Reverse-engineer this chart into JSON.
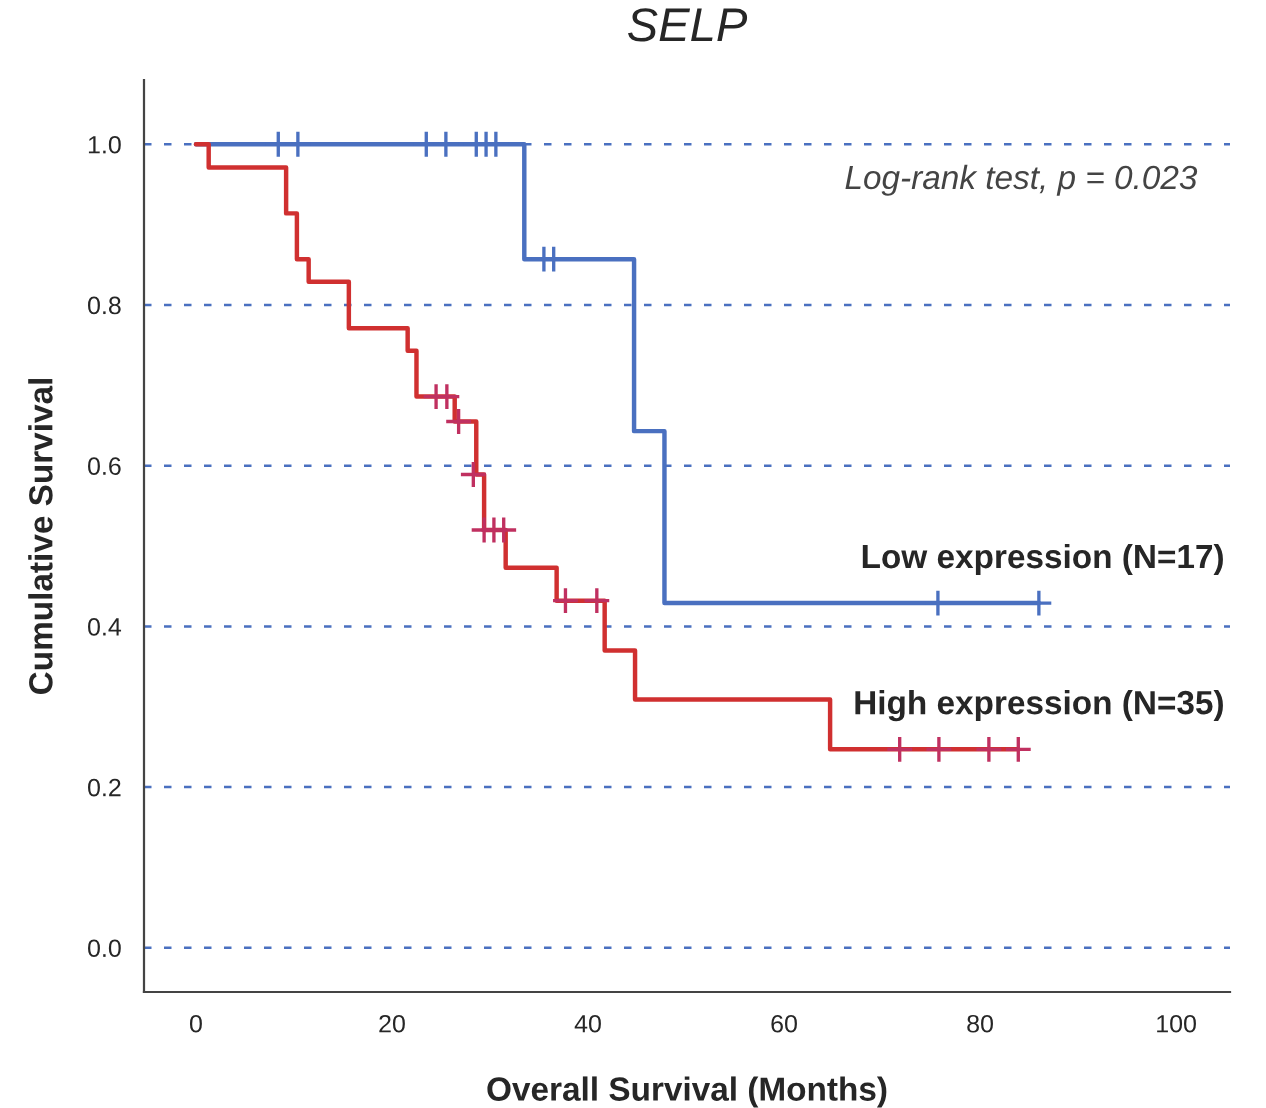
{
  "chart_data": {
    "type": "step",
    "title": "SELP",
    "xlabel": "Overall Survival (Months)",
    "ylabel": "Cumulative Survival",
    "annotations": [
      "Log-rank test, p = 0.023"
    ],
    "series": [
      {
        "name": "Low expression (N=17)",
        "color": "#4a70c0",
        "x": [
          0,
          33.5,
          44.7,
          47.8,
          86
        ],
        "values": [
          1,
          0.857,
          0.643,
          0.429,
          0.429
        ]
      },
      {
        "name": "High expression (N=35)",
        "color": "#d03030",
        "x": [
          0,
          1.3,
          9.2,
          10.3,
          11.5,
          15.6,
          21.6,
          22.5,
          26.4,
          28.6,
          29.4,
          31.6,
          36.8,
          41.7,
          44.8,
          64.7,
          83.9
        ],
        "values": [
          1,
          0.971,
          0.914,
          0.857,
          0.829,
          0.771,
          0.743,
          0.686,
          0.655,
          0.589,
          0.52,
          0.473,
          0.432,
          0.37,
          0.309,
          0.247,
          0.247
        ]
      },
      {
        "type": "scatter",
        "marker": "cross",
        "color": "#4a70c0",
        "x": [
          8.4,
          10.4,
          23.5,
          25.5,
          28.6,
          29.6,
          30.6,
          35.5,
          36.5,
          75.7,
          86
        ],
        "values": [
          1,
          1,
          1,
          1,
          1,
          1,
          1,
          0.857,
          0.857,
          0.429,
          0.429
        ]
      },
      {
        "type": "scatter",
        "marker": "cross",
        "color": "#c03060",
        "x": [
          24.5,
          25.6,
          26.8,
          28.3,
          29.4,
          30.4,
          31.4,
          37.7,
          40.9,
          71.8,
          75.8,
          80.9,
          83.9
        ],
        "values": [
          0.686,
          0.686,
          0.655,
          0.589,
          0.52,
          0.52,
          0.52,
          0.432,
          0.432,
          0.247,
          0.247,
          0.247,
          0.247
        ]
      }
    ],
    "xlim": [
      -5.3,
      105.5
    ],
    "ylim": [
      -0.055,
      1.08
    ],
    "xticks": [
      0,
      20,
      40,
      60,
      80,
      100
    ],
    "yticks": [
      {
        "value": 0,
        "label": "0.0"
      },
      {
        "value": 0.2,
        "label": "0.2"
      },
      {
        "value": 0.4,
        "label": "0.4"
      },
      {
        "value": 0.6,
        "label": "0.6"
      },
      {
        "value": 0.8,
        "label": "0.8"
      },
      {
        "value": 1,
        "label": "1.0"
      }
    ],
    "grid": "y",
    "legend": false,
    "line_style": "solid"
  }
}
